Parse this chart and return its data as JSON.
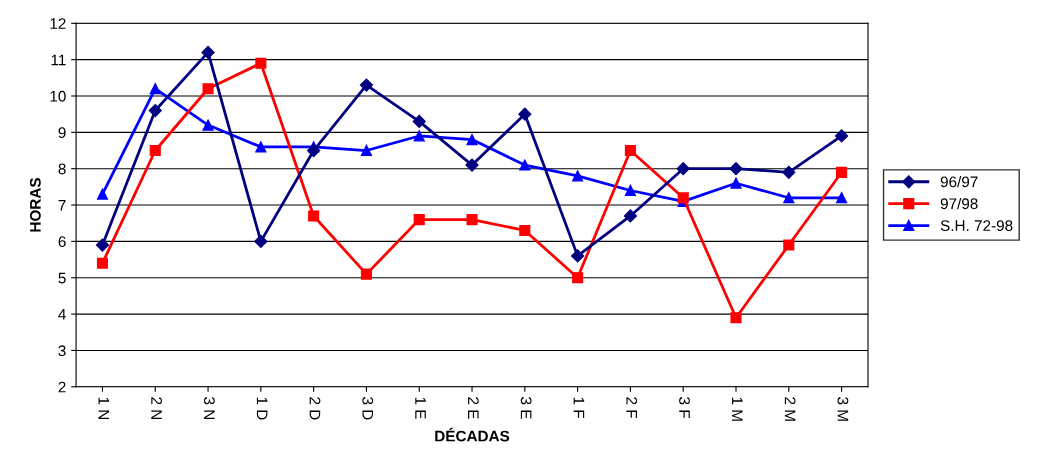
{
  "chart_data": {
    "type": "line",
    "xlabel": "DÉCADAS",
    "ylabel": "HORAS",
    "categories": [
      "1 N",
      "2 N",
      "3 N",
      "1 D",
      "2 D",
      "3 D",
      "1 E",
      "2 E",
      "3 E",
      "1 F",
      "2 F",
      "3 F",
      "1 M",
      "2 M",
      "3 M"
    ],
    "series": [
      {
        "name": "96/97",
        "color": "#000080",
        "marker": "diamond",
        "values": [
          5.9,
          9.6,
          11.2,
          6.0,
          8.5,
          10.3,
          9.3,
          8.1,
          9.5,
          5.6,
          6.7,
          8.0,
          8.0,
          7.9,
          8.9
        ]
      },
      {
        "name": "97/98",
        "color": "#ff0000",
        "marker": "square",
        "values": [
          5.4,
          8.5,
          10.2,
          10.9,
          6.7,
          5.1,
          6.6,
          6.6,
          6.3,
          5.0,
          8.5,
          7.2,
          3.9,
          5.9,
          7.9
        ]
      },
      {
        "name": "S.H. 72-98",
        "color": "#0000ff",
        "marker": "triangle",
        "values": [
          7.3,
          10.2,
          9.2,
          8.6,
          8.6,
          8.5,
          8.9,
          8.8,
          8.1,
          7.8,
          7.4,
          7.1,
          7.6,
          7.2,
          7.2
        ]
      }
    ],
    "ylim": [
      2,
      12
    ],
    "yticks": [
      2,
      3,
      4,
      5,
      6,
      7,
      8,
      9,
      10,
      11,
      12
    ],
    "grid": "y",
    "legend": "right",
    "line_style": "solid"
  }
}
